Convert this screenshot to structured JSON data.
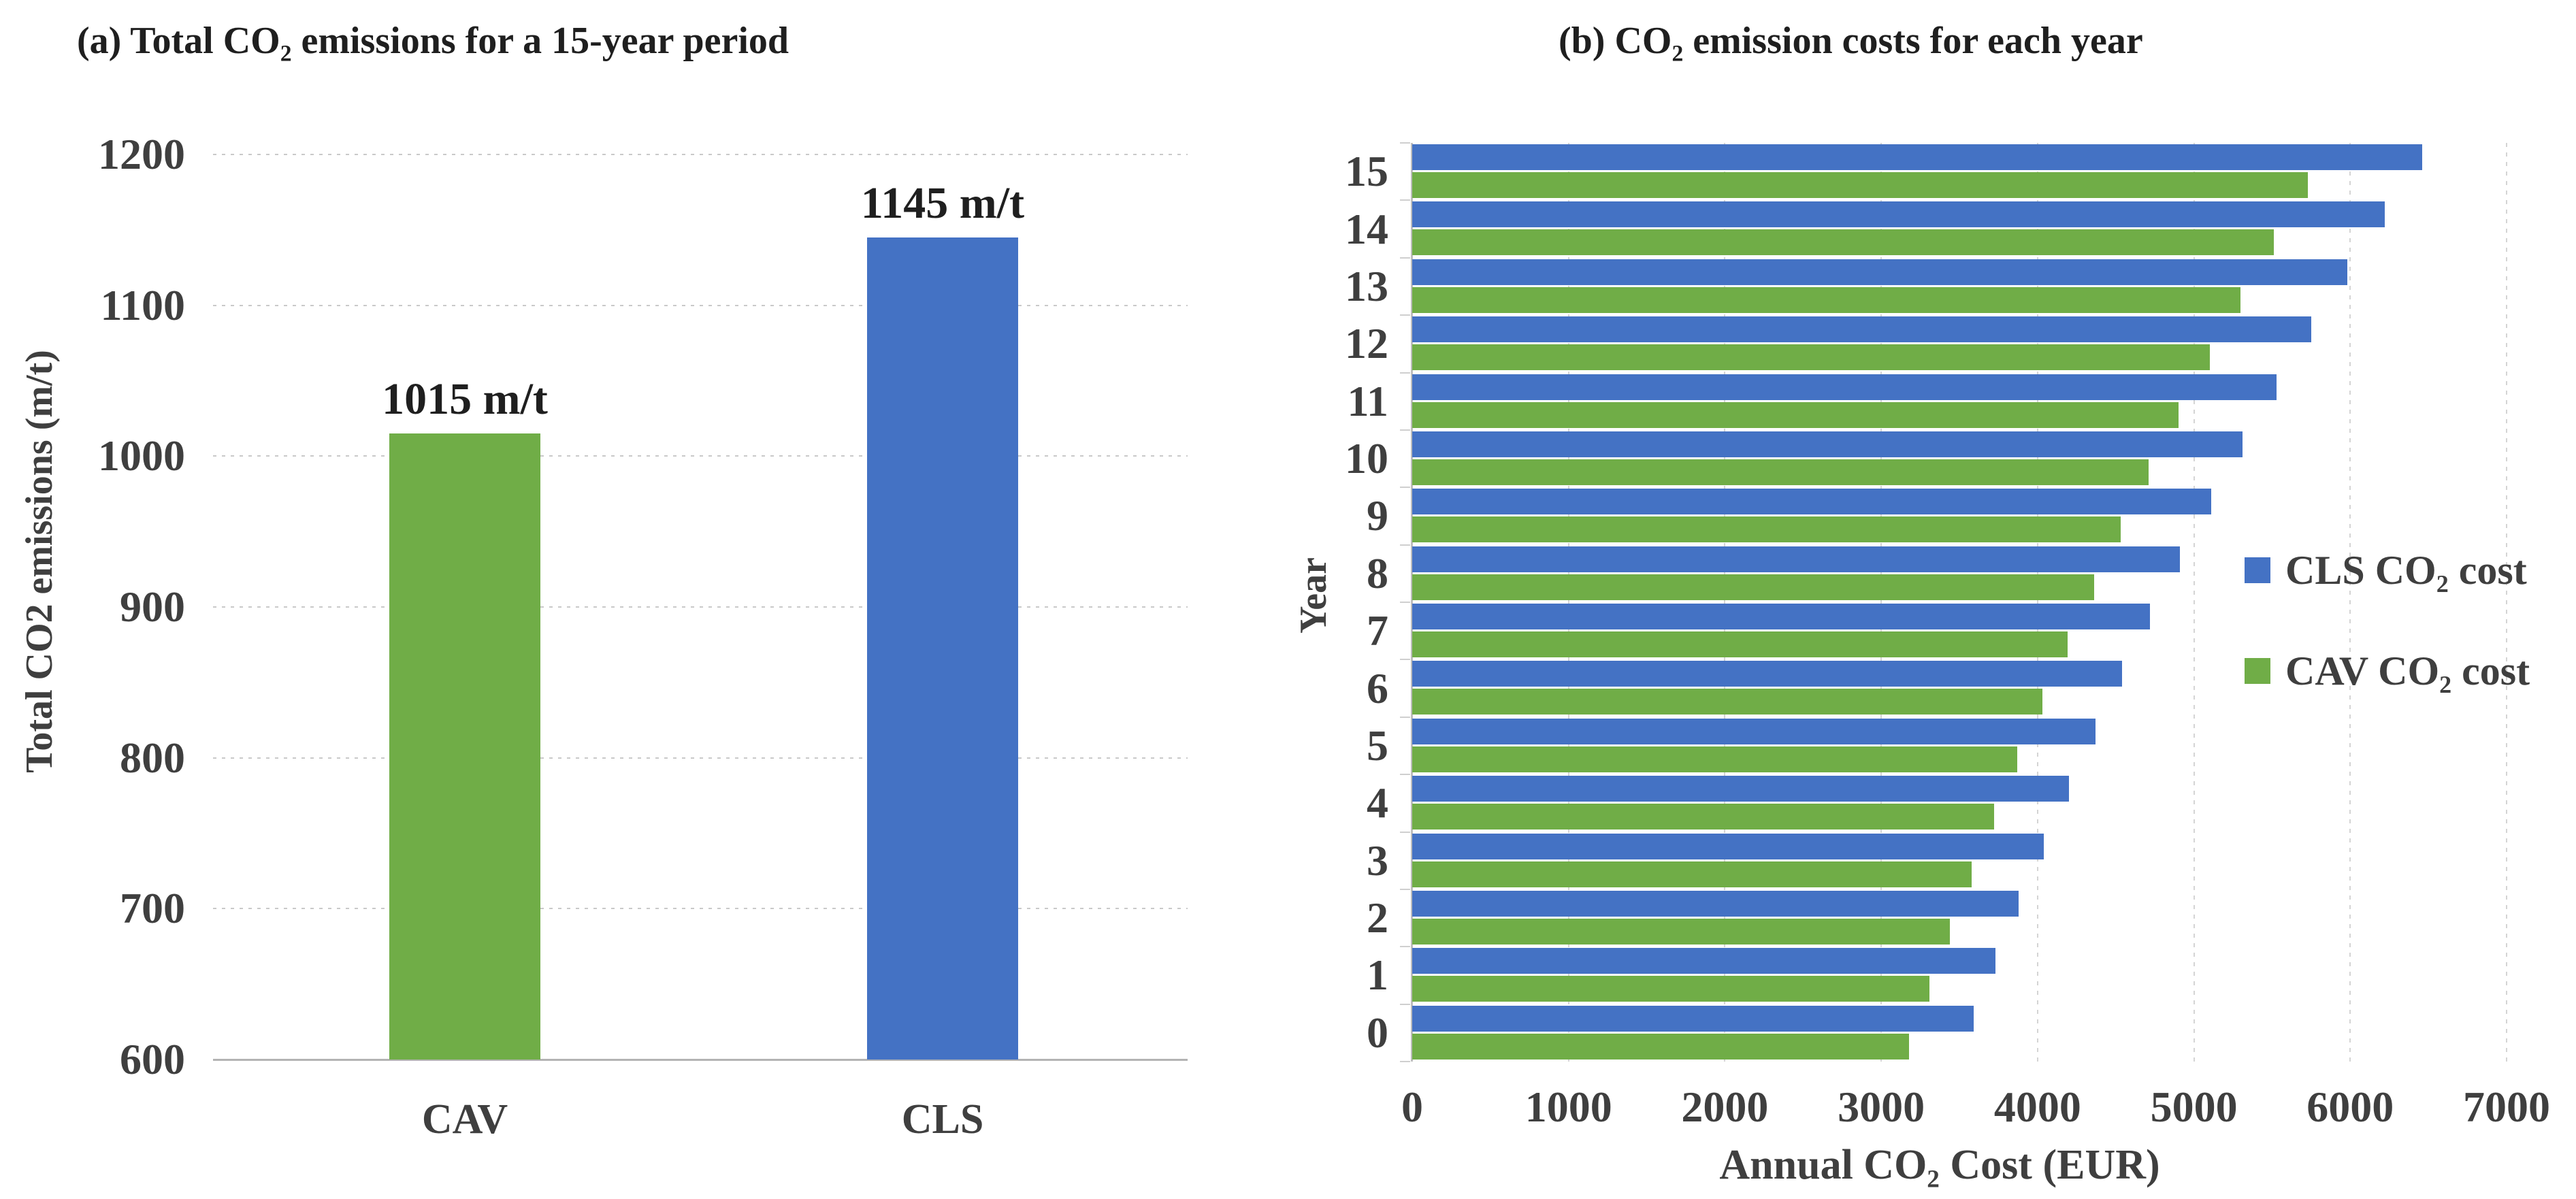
{
  "figure": {
    "background": "#ffffff",
    "text_color_titles": "#1f1f1f",
    "text_color_axes": "#3f3f3f",
    "gridline_color": "#c9c9c9"
  },
  "colors": {
    "cls_blue": "#4472C4",
    "cav_green": "#70AD47"
  },
  "chart_data": [
    {
      "id": "total-co2-emissions",
      "type": "bar",
      "orientation": "vertical",
      "title": "(a) Total CO₂ emissions for a 15-year period",
      "ylabel": "Total CO2 emissions (m/t)",
      "xlabel": "",
      "categories": [
        "CAV",
        "CLS"
      ],
      "values": [
        1015,
        1145
      ],
      "data_labels": [
        "1015 m/t",
        "1145 m/t"
      ],
      "bar_colors": [
        "#70AD47",
        "#4472C4"
      ],
      "ylim": [
        600,
        1200
      ],
      "yticks": [
        1200,
        1100,
        1000,
        900,
        800,
        700,
        600
      ],
      "grid": "horizontal-dotted",
      "legend_position": "none"
    },
    {
      "id": "annual-co2-cost-per-year",
      "type": "bar",
      "orientation": "horizontal",
      "title": "(b) CO₂ emission costs for each year",
      "xlabel": "Annual CO₂ Cost (EUR)",
      "ylabel": "Year",
      "categories": [
        15,
        14,
        13,
        12,
        11,
        10,
        9,
        8,
        7,
        6,
        5,
        4,
        3,
        2,
        1,
        0
      ],
      "series": [
        {
          "name": "CLS CO₂ cost",
          "color": "#4472C4",
          "values": [
            6460,
            6220,
            5980,
            5750,
            5530,
            5310,
            5110,
            4910,
            4720,
            4540,
            4370,
            4200,
            4040,
            3880,
            3730,
            3590
          ]
        },
        {
          "name": "CAV CO₂ cost",
          "color": "#70AD47",
          "values": [
            5730,
            5510,
            5300,
            5100,
            4900,
            4710,
            4530,
            4360,
            4190,
            4030,
            3870,
            3720,
            3580,
            3440,
            3310,
            3180
          ]
        }
      ],
      "xlim": [
        0,
        7000
      ],
      "xticks": [
        0,
        1000,
        2000,
        3000,
        4000,
        5000,
        6000,
        7000
      ],
      "grid": "vertical",
      "legend_position": "inside-right"
    }
  ]
}
